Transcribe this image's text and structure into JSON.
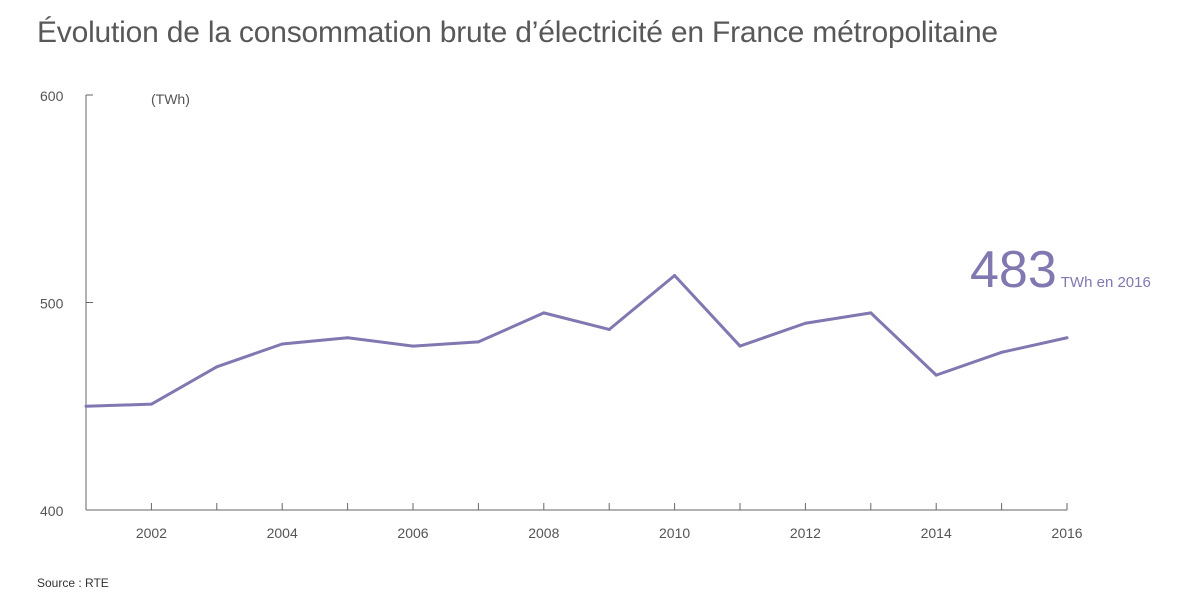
{
  "title": "Évolution de la consommation brute d’électricité en France métropolitaine",
  "source": "Source : RTE",
  "callout": {
    "value": "483",
    "label": "TWh en 2016"
  },
  "colors": {
    "line": "#8078b0",
    "axis": "#666666",
    "text": "#555555"
  },
  "chart_data": {
    "type": "line",
    "title": "Évolution de la consommation brute d’électricité en France métropolitaine",
    "ylabel": "(TWh)",
    "xlabel": "",
    "x": [
      2001,
      2002,
      2003,
      2004,
      2005,
      2006,
      2007,
      2008,
      2009,
      2010,
      2011,
      2012,
      2013,
      2014,
      2015,
      2016
    ],
    "series": [
      {
        "name": "Consommation brute",
        "values": [
          450,
          451,
          469,
          480,
          483,
          479,
          481,
          495,
          487,
          513,
          479,
          490,
          495,
          465,
          476,
          483
        ]
      }
    ],
    "ylim": [
      400,
      600
    ],
    "yticks": [
      400,
      500,
      600
    ],
    "xtick_labels": [
      "2002",
      "2004",
      "2006",
      "2008",
      "2010",
      "2012",
      "2014",
      "2016"
    ],
    "xlim": [
      2001,
      2016
    ],
    "grid": false
  }
}
